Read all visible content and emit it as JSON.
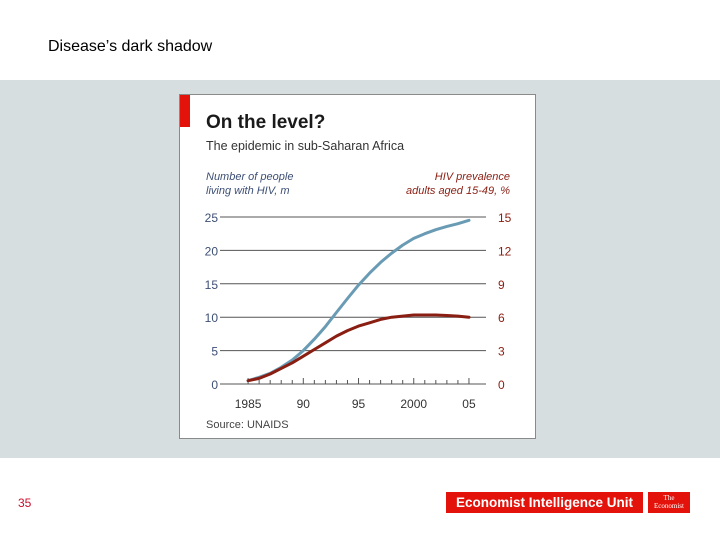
{
  "slide": {
    "title": "Disease’s dark shadow",
    "page_number": "35"
  },
  "footer": {
    "eiu_logo": "Economist Intelligence Unit",
    "economist_logo_line1": "The",
    "economist_logo_line2": "Economist"
  },
  "colors": {
    "accent_red": "#e3120b",
    "series_blue": "#6a9bb4",
    "series_red": "#8a1e12",
    "gridline": "#555555"
  },
  "chart_data": {
    "type": "line",
    "title": "On the level?",
    "subtitle": "The epidemic in sub-Saharan Africa",
    "left_axis_label": [
      "Number of people",
      "living with HIV, m"
    ],
    "right_axis_label": [
      "HIV prevalence",
      "adults aged 15-49, %"
    ],
    "x_tick_labels": [
      "1985",
      "90",
      "95",
      "2000",
      "05"
    ],
    "x_ticks": [
      1985,
      1990,
      1995,
      2000,
      2005
    ],
    "xlim": [
      1983,
      2006
    ],
    "ylim_left": [
      0,
      25
    ],
    "ylim_right": [
      0,
      15
    ],
    "left_ticks": [
      "0",
      "5",
      "10",
      "15",
      "20",
      "25"
    ],
    "right_ticks": [
      "0",
      "3",
      "6",
      "9",
      "12",
      "15"
    ],
    "grid": true,
    "source": "Source: UNAIDS",
    "series": [
      {
        "axis": "left",
        "color": "#6a9bb4",
        "x": [
          1985,
          1986,
          1987,
          1988,
          1989,
          1990,
          1991,
          1992,
          1993,
          1994,
          1995,
          1996,
          1997,
          1998,
          1999,
          2000,
          2001,
          2002,
          2003,
          2004,
          2005
        ],
        "y": [
          0.5,
          1.0,
          1.6,
          2.5,
          3.6,
          5.0,
          6.7,
          8.6,
          10.7,
          12.8,
          14.8,
          16.6,
          18.2,
          19.6,
          20.8,
          21.8,
          22.5,
          23.1,
          23.6,
          24.0,
          24.5
        ]
      },
      {
        "axis": "right",
        "color": "#8a1e12",
        "x": [
          1985,
          1986,
          1987,
          1988,
          1989,
          1990,
          1991,
          1992,
          1993,
          1994,
          1995,
          1996,
          1997,
          1998,
          1999,
          2000,
          2001,
          2002,
          2003,
          2004,
          2005
        ],
        "y": [
          0.3,
          0.5,
          0.9,
          1.4,
          1.9,
          2.5,
          3.1,
          3.7,
          4.3,
          4.8,
          5.2,
          5.5,
          5.8,
          6.0,
          6.1,
          6.2,
          6.2,
          6.2,
          6.15,
          6.1,
          6.0
        ]
      }
    ]
  }
}
